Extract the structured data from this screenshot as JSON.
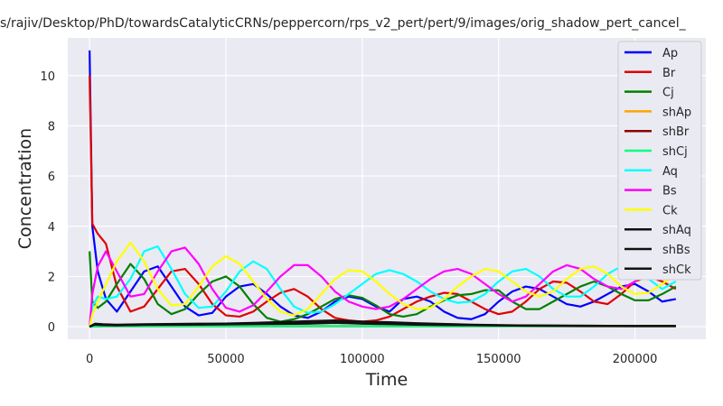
{
  "chart_data": {
    "type": "line",
    "title": "s/rajiv/Desktop/PhD/towardsCatalyticCRNs/peppercorn/rps_v2_pert/pert/9/images/orig_shadow_pert_cancel_",
    "xlabel": "Time",
    "ylabel": "Concentration",
    "xlim": [
      -8000,
      226000
    ],
    "ylim": [
      -0.5,
      11.5
    ],
    "xticks": [
      0,
      50000,
      100000,
      150000,
      200000
    ],
    "yticks": [
      0,
      2,
      4,
      6,
      8,
      10
    ],
    "grid": true,
    "legend_position": "top-right",
    "series": [
      {
        "name": "Ap",
        "color": "#0000ff",
        "x": [
          0,
          1000,
          3000,
          6000,
          10000,
          15000,
          20000,
          25000,
          30000,
          35000,
          40000,
          45000,
          50000,
          55000,
          60000,
          65000,
          70000,
          75000,
          80000,
          85000,
          90000,
          95000,
          100000,
          105000,
          110000,
          115000,
          120000,
          125000,
          130000,
          135000,
          140000,
          145000,
          150000,
          155000,
          160000,
          165000,
          170000,
          175000,
          180000,
          185000,
          190000,
          195000,
          200000,
          205000,
          210000,
          215000
        ],
        "values": [
          11,
          4.0,
          2.2,
          1.1,
          0.6,
          1.4,
          2.2,
          2.4,
          1.6,
          0.8,
          0.45,
          0.55,
          1.2,
          1.6,
          1.7,
          1.3,
          0.8,
          0.45,
          0.35,
          0.6,
          1.0,
          1.2,
          1.1,
          0.8,
          0.6,
          1.1,
          1.2,
          1.0,
          0.6,
          0.35,
          0.3,
          0.5,
          1.0,
          1.4,
          1.6,
          1.5,
          1.2,
          0.9,
          0.8,
          1.0,
          1.3,
          1.6,
          1.7,
          1.4,
          1.0,
          1.1
        ]
      },
      {
        "name": "Br",
        "color": "#e00000",
        "x": [
          0,
          1000,
          3000,
          6000,
          10000,
          15000,
          20000,
          25000,
          30000,
          35000,
          40000,
          45000,
          50000,
          55000,
          60000,
          65000,
          70000,
          75000,
          80000,
          85000,
          90000,
          95000,
          100000,
          105000,
          110000,
          115000,
          120000,
          125000,
          130000,
          135000,
          140000,
          145000,
          150000,
          155000,
          160000,
          165000,
          170000,
          175000,
          180000,
          185000,
          190000,
          195000,
          200000,
          205000,
          210000,
          215000
        ],
        "values": [
          10,
          4.1,
          3.7,
          3.3,
          1.6,
          0.6,
          0.8,
          1.5,
          2.2,
          2.3,
          1.7,
          0.9,
          0.45,
          0.4,
          0.6,
          1.0,
          1.35,
          1.5,
          1.2,
          0.7,
          0.35,
          0.25,
          0.2,
          0.25,
          0.4,
          0.7,
          1.0,
          1.2,
          1.35,
          1.3,
          1.0,
          0.7,
          0.5,
          0.6,
          1.0,
          1.5,
          1.8,
          1.75,
          1.4,
          1.0,
          0.9,
          1.3,
          1.8,
          2.0,
          1.8,
          1.5
        ]
      },
      {
        "name": "Cj",
        "color": "#008000",
        "x": [
          0,
          1000,
          3000,
          6000,
          10000,
          15000,
          20000,
          25000,
          30000,
          35000,
          40000,
          45000,
          50000,
          55000,
          60000,
          65000,
          70000,
          75000,
          80000,
          85000,
          90000,
          95000,
          100000,
          105000,
          110000,
          115000,
          120000,
          125000,
          130000,
          135000,
          140000,
          145000,
          150000,
          155000,
          160000,
          165000,
          170000,
          175000,
          180000,
          185000,
          190000,
          195000,
          200000,
          205000,
          210000,
          215000
        ],
        "values": [
          3,
          1.0,
          0.75,
          1.0,
          1.7,
          2.5,
          1.9,
          0.9,
          0.5,
          0.7,
          1.3,
          1.8,
          2.0,
          1.6,
          0.9,
          0.35,
          0.2,
          0.3,
          0.5,
          0.8,
          1.1,
          1.25,
          1.15,
          0.85,
          0.5,
          0.4,
          0.5,
          0.8,
          1.05,
          1.25,
          1.3,
          1.45,
          1.45,
          1.0,
          0.7,
          0.7,
          1.0,
          1.3,
          1.6,
          1.8,
          1.6,
          1.3,
          1.05,
          1.05,
          1.3,
          1.6
        ]
      },
      {
        "name": "shAp",
        "color": "#ffa500",
        "x": [
          0,
          5000,
          50000,
          100000,
          150000,
          215000
        ],
        "values": [
          0,
          0.02,
          0.02,
          0.02,
          0.02,
          0.02
        ]
      },
      {
        "name": "shBr",
        "color": "#8b0000",
        "x": [
          0,
          5000,
          50000,
          100000,
          150000,
          215000
        ],
        "values": [
          0,
          0.02,
          0.02,
          0.02,
          0.02,
          0.02
        ]
      },
      {
        "name": "shCj",
        "color": "#00ff7f",
        "x": [
          0,
          5000,
          50000,
          100000,
          150000,
          215000
        ],
        "values": [
          0,
          0.02,
          0.02,
          0.02,
          0.02,
          0.02
        ]
      },
      {
        "name": "Aq",
        "color": "#00ffff",
        "x": [
          0,
          1000,
          3000,
          6000,
          10000,
          15000,
          20000,
          25000,
          30000,
          35000,
          40000,
          45000,
          50000,
          55000,
          60000,
          65000,
          70000,
          75000,
          80000,
          85000,
          90000,
          95000,
          100000,
          105000,
          110000,
          115000,
          120000,
          125000,
          130000,
          135000,
          140000,
          145000,
          150000,
          155000,
          160000,
          165000,
          170000,
          175000,
          180000,
          185000,
          190000,
          195000,
          200000,
          205000,
          210000,
          215000
        ],
        "values": [
          0,
          0.8,
          1.2,
          1.1,
          1.2,
          1.9,
          3.0,
          3.2,
          2.3,
          1.3,
          0.75,
          0.8,
          1.4,
          2.2,
          2.6,
          2.3,
          1.5,
          0.8,
          0.55,
          0.6,
          0.9,
          1.3,
          1.7,
          2.1,
          2.25,
          2.1,
          1.8,
          1.4,
          1.1,
          0.95,
          1.0,
          1.3,
          1.8,
          2.2,
          2.3,
          2.0,
          1.5,
          1.2,
          1.2,
          1.6,
          2.1,
          2.4,
          2.3,
          1.9,
          1.5,
          1.8
        ]
      },
      {
        "name": "Bs",
        "color": "#ff00ff",
        "x": [
          0,
          1000,
          3000,
          6000,
          10000,
          15000,
          20000,
          25000,
          30000,
          35000,
          40000,
          45000,
          50000,
          55000,
          60000,
          65000,
          70000,
          75000,
          80000,
          85000,
          90000,
          95000,
          100000,
          105000,
          110000,
          115000,
          120000,
          125000,
          130000,
          135000,
          140000,
          145000,
          150000,
          155000,
          160000,
          165000,
          170000,
          175000,
          180000,
          185000,
          190000,
          195000,
          200000,
          205000,
          210000,
          215000
        ],
        "values": [
          0,
          1.3,
          2.4,
          3.0,
          2.2,
          1.2,
          1.3,
          2.2,
          3.0,
          3.15,
          2.5,
          1.5,
          0.75,
          0.6,
          0.85,
          1.4,
          2.0,
          2.45,
          2.45,
          2.0,
          1.4,
          1.0,
          0.8,
          0.7,
          0.8,
          1.1,
          1.5,
          1.9,
          2.2,
          2.3,
          2.1,
          1.7,
          1.3,
          1.0,
          1.2,
          1.7,
          2.2,
          2.45,
          2.3,
          1.9,
          1.6,
          1.5,
          1.8,
          2.2,
          2.3,
          2.0
        ]
      },
      {
        "name": "Ck",
        "color": "#ffff00",
        "x": [
          0,
          1000,
          3000,
          6000,
          10000,
          15000,
          20000,
          25000,
          30000,
          35000,
          40000,
          45000,
          50000,
          55000,
          60000,
          65000,
          70000,
          75000,
          80000,
          85000,
          90000,
          95000,
          100000,
          105000,
          110000,
          115000,
          120000,
          125000,
          130000,
          135000,
          140000,
          145000,
          150000,
          155000,
          160000,
          165000,
          170000,
          175000,
          180000,
          185000,
          190000,
          195000,
          200000,
          205000,
          210000,
          215000
        ],
        "values": [
          0,
          0.5,
          1.0,
          1.7,
          2.6,
          3.35,
          2.6,
          1.5,
          0.85,
          0.9,
          1.6,
          2.4,
          2.8,
          2.5,
          1.8,
          1.1,
          0.6,
          0.45,
          0.7,
          1.3,
          1.9,
          2.25,
          2.2,
          1.8,
          1.3,
          0.9,
          0.7,
          0.75,
          1.1,
          1.6,
          2.0,
          2.3,
          2.2,
          1.8,
          1.4,
          1.2,
          1.4,
          1.9,
          2.3,
          2.4,
          2.1,
          1.6,
          1.3,
          1.35,
          1.7,
          2.1
        ]
      },
      {
        "name": "shAq",
        "color": "#111111",
        "x": [
          0,
          2000,
          5000,
          10000,
          20000,
          40000,
          60000,
          80000,
          90000,
          100000,
          110000,
          120000,
          140000,
          160000,
          180000,
          200000,
          215000
        ],
        "values": [
          0,
          0.1,
          0.08,
          0.06,
          0.08,
          0.1,
          0.15,
          0.22,
          0.25,
          0.2,
          0.12,
          0.08,
          0.06,
          0.05,
          0.04,
          0.03,
          0.03
        ]
      },
      {
        "name": "shBs",
        "color": "#111111",
        "x": [
          0,
          2000,
          5000,
          10000,
          20000,
          40000,
          60000,
          80000,
          90000,
          100000,
          110000,
          120000,
          140000,
          160000,
          180000,
          200000,
          215000
        ],
        "values": [
          0,
          0.12,
          0.1,
          0.08,
          0.1,
          0.12,
          0.12,
          0.15,
          0.18,
          0.2,
          0.18,
          0.14,
          0.08,
          0.05,
          0.04,
          0.03,
          0.03
        ]
      },
      {
        "name": "shCk",
        "color": "#111111",
        "x": [
          0,
          2000,
          5000,
          10000,
          20000,
          40000,
          60000,
          80000,
          90000,
          100000,
          110000,
          120000,
          140000,
          160000,
          180000,
          200000,
          215000
        ],
        "values": [
          0,
          0.08,
          0.06,
          0.05,
          0.07,
          0.08,
          0.1,
          0.12,
          0.15,
          0.12,
          0.1,
          0.08,
          0.06,
          0.04,
          0.03,
          0.02,
          0.02
        ]
      }
    ]
  }
}
